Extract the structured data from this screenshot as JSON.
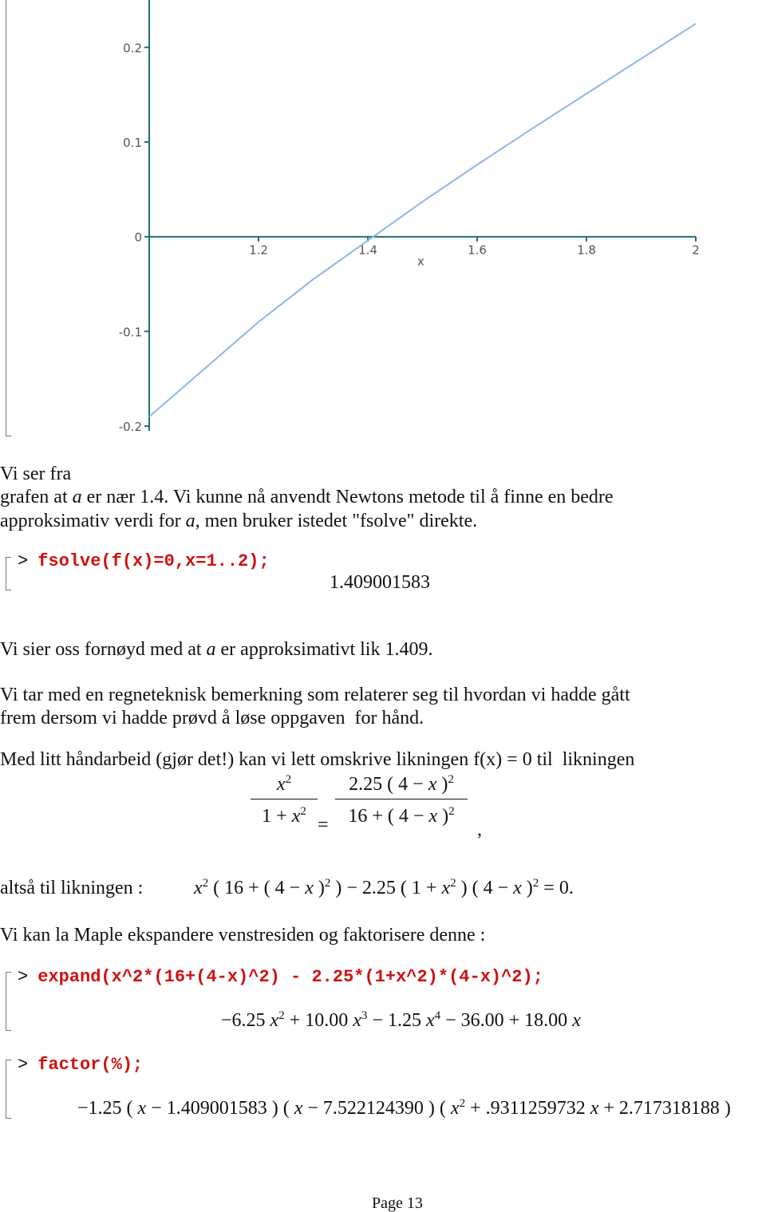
{
  "chart_data": {
    "type": "line",
    "xlabel": "x",
    "x": [
      1.0,
      1.1,
      1.2,
      1.3,
      1.4,
      1.5,
      1.6,
      1.7,
      1.8,
      1.9,
      2.0
    ],
    "series": [
      {
        "color": "#8db6e6",
        "values": [
          -0.19,
          -0.14,
          -0.09,
          -0.045,
          -0.004,
          0.037,
          0.076,
          0.114,
          0.151,
          0.188,
          0.225
        ]
      }
    ],
    "xlim": [
      1.0,
      2.0
    ],
    "ylim": [
      -0.205,
      0.25
    ],
    "xticks": [
      1.2,
      1.4,
      1.6,
      1.8,
      2
    ],
    "yticks": [
      -0.2,
      -0.1,
      0,
      0.1,
      0.2
    ],
    "axis_color": "#1f6f6f"
  },
  "document": {
    "p1": [
      [
        "Vi ser fra"
      ],
      [
        "grafen at ",
        {
          "i": "a"
        },
        " er nær 1.4. Vi kunne nå anvendt Newtons metode til å finne en bedre"
      ],
      [
        "approksimativ verdi for ",
        {
          "i": "a"
        },
        ", men bruker istedet \"fsolve\" direkte."
      ]
    ],
    "cmd1": {
      "prompt": ">",
      "input": "fsolve(f(x)=0,x=1..2);",
      "output": "1.409001583"
    },
    "p2": [
      "Vi sier oss fornøyd med at ",
      {
        "i": "a"
      },
      " er approksimativt lik 1.409."
    ],
    "p3": [
      [
        "Vi tar med en regneteknisk bemerkning som relaterer seg til hvordan vi hadde gått"
      ],
      [
        "frem dersom vi hadde prøvd å løse oppgaven  for hånd."
      ]
    ],
    "p4": [
      "Med litt håndarbeid (gjør det!) kan vi lett omskrive likningen f(x) = 0 til  likningen"
    ],
    "eq1": {
      "left_num": [
        {
          "i": "x"
        },
        {
          "sup": "2"
        }
      ],
      "left_den": [
        "1 + ",
        {
          "i": "x"
        },
        {
          "sup": "2"
        }
      ],
      "equals": "=",
      "right_num": [
        "2.25 ( 4 − ",
        {
          "i": "x"
        },
        " )",
        {
          "sup": "2"
        }
      ],
      "right_den": [
        "16 + ( 4 − ",
        {
          "i": "x"
        },
        " )",
        {
          "sup": "2"
        }
      ],
      "comma": ","
    },
    "eq2": {
      "label": "altså til likningen :",
      "math": [
        {
          "i": "x"
        },
        {
          "sup": "2"
        },
        " ( 16 + ( 4 − ",
        {
          "i": "x"
        },
        " )",
        {
          "sup": "2"
        },
        " ) − 2.25 ( 1 + ",
        {
          "i": "x"
        },
        {
          "sup": "2"
        },
        " ) ( 4 − ",
        {
          "i": "x"
        },
        " )",
        {
          "sup": "2"
        },
        " = 0."
      ]
    },
    "p5": [
      "Vi kan la Maple ekspandere venstresiden og faktorisere denne :"
    ],
    "cmd2": {
      "prompt": ">",
      "input": "expand(x^2*(16+(4-x)^2) - 2.25*(1+x^2)*(4-x)^2);",
      "output": [
        "−6.25 ",
        {
          "i": "x"
        },
        {
          "sup": "2"
        },
        " + 10.00 ",
        {
          "i": "x"
        },
        {
          "sup": "3"
        },
        " − 1.25 ",
        {
          "i": "x"
        },
        {
          "sup": "4"
        },
        " − 36.00 + 18.00 ",
        {
          "i": "x"
        }
      ]
    },
    "cmd3": {
      "prompt": ">",
      "input": "factor(%);",
      "output": [
        "−1.25 ( ",
        {
          "i": "x"
        },
        " − 1.409001583 ) ( ",
        {
          "i": "x"
        },
        " − 7.522124390 ) ( ",
        {
          "i": "x"
        },
        {
          "sup": "2"
        },
        " + .9311259732 ",
        {
          "i": "x"
        },
        " + 2.717318188 )"
      ]
    },
    "footer": "Page 13"
  }
}
